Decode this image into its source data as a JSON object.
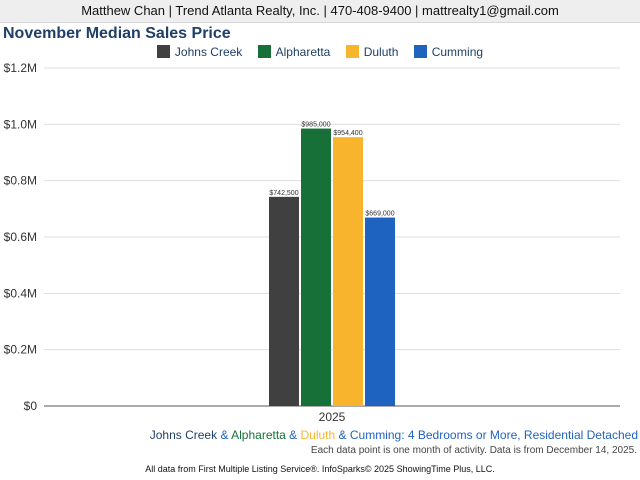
{
  "header": {
    "contact": "Matthew Chan | Trend Atlanta Realty, Inc. | 470-408-9400 | mattrealty1@gmail.com"
  },
  "chart_data": {
    "type": "bar",
    "title": "November Median Sales Price",
    "categories": [
      "2025"
    ],
    "series": [
      {
        "name": "Johns Creek",
        "color": "#404040",
        "values": [
          742500
        ],
        "label": "$742,500"
      },
      {
        "name": "Alpharetta",
        "color": "#167038",
        "values": [
          985000
        ],
        "label": "$985,000"
      },
      {
        "name": "Duluth",
        "color": "#f8b42c",
        "values": [
          954400
        ],
        "label": "$954,400"
      },
      {
        "name": "Cumming",
        "color": "#1f63c0",
        "values": [
          669000
        ],
        "label": "$669,000"
      }
    ],
    "ylim": [
      0,
      1200000
    ],
    "yticks": [
      {
        "value": 0,
        "label": "$0"
      },
      {
        "value": 200000,
        "label": "$0.2M"
      },
      {
        "value": 400000,
        "label": "$0.4M"
      },
      {
        "value": 600000,
        "label": "$0.6M"
      },
      {
        "value": 800000,
        "label": "$0.8M"
      },
      {
        "value": 1000000,
        "label": "$1.0M"
      },
      {
        "value": 1200000,
        "label": "$1.2M"
      }
    ],
    "grid": true,
    "legend_position": "top-center"
  },
  "footer": {
    "description": {
      "parts": [
        {
          "text": "Johns Creek",
          "color": "#1f3f66"
        },
        {
          "text": " & ",
          "color": "#1f63c0"
        },
        {
          "text": "Alpharetta",
          "color": "#167038"
        },
        {
          "text": " & ",
          "color": "#1f63c0"
        },
        {
          "text": "Duluth",
          "color": "#f8b42c"
        },
        {
          "text": " & ",
          "color": "#1f63c0"
        },
        {
          "text": "Cumming: 4 Bedrooms or More, Residential Detached",
          "color": "#1f63c0"
        }
      ]
    },
    "note": "Each data point is one month of activity. Data is from December 14, 2025.",
    "source": "All data from First Multiple Listing Service®. InfoSparks© 2025 ShowingTime Plus, LLC."
  }
}
